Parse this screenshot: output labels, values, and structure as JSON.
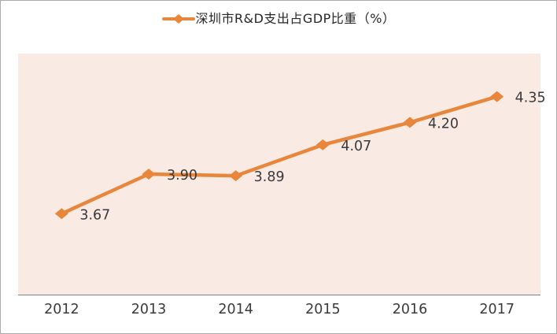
{
  "chart_data": {
    "type": "line",
    "title": "深圳市R&D支出占GDP比重（%）",
    "legend_position": "top",
    "grid": false,
    "categories": [
      "2012",
      "2013",
      "2014",
      "2015",
      "2016",
      "2017"
    ],
    "series": [
      {
        "name": "深圳市R&D支出占GDP比重（%）",
        "values": [
          3.67,
          3.9,
          3.89,
          4.07,
          4.2,
          4.35
        ],
        "data_labels": [
          "3.67",
          "3.90",
          "3.89",
          "4.07",
          "4.20",
          "4.35"
        ],
        "color": "#E8873B",
        "marker": "diamond"
      }
    ],
    "xlabel": "",
    "ylabel": "",
    "ylim": [
      3.2,
      4.6
    ],
    "plot_background": "#FAEAE4",
    "frame_color": "#ABABAB",
    "axis_line_color": "#808080",
    "label_color": "#3A3A3A"
  }
}
